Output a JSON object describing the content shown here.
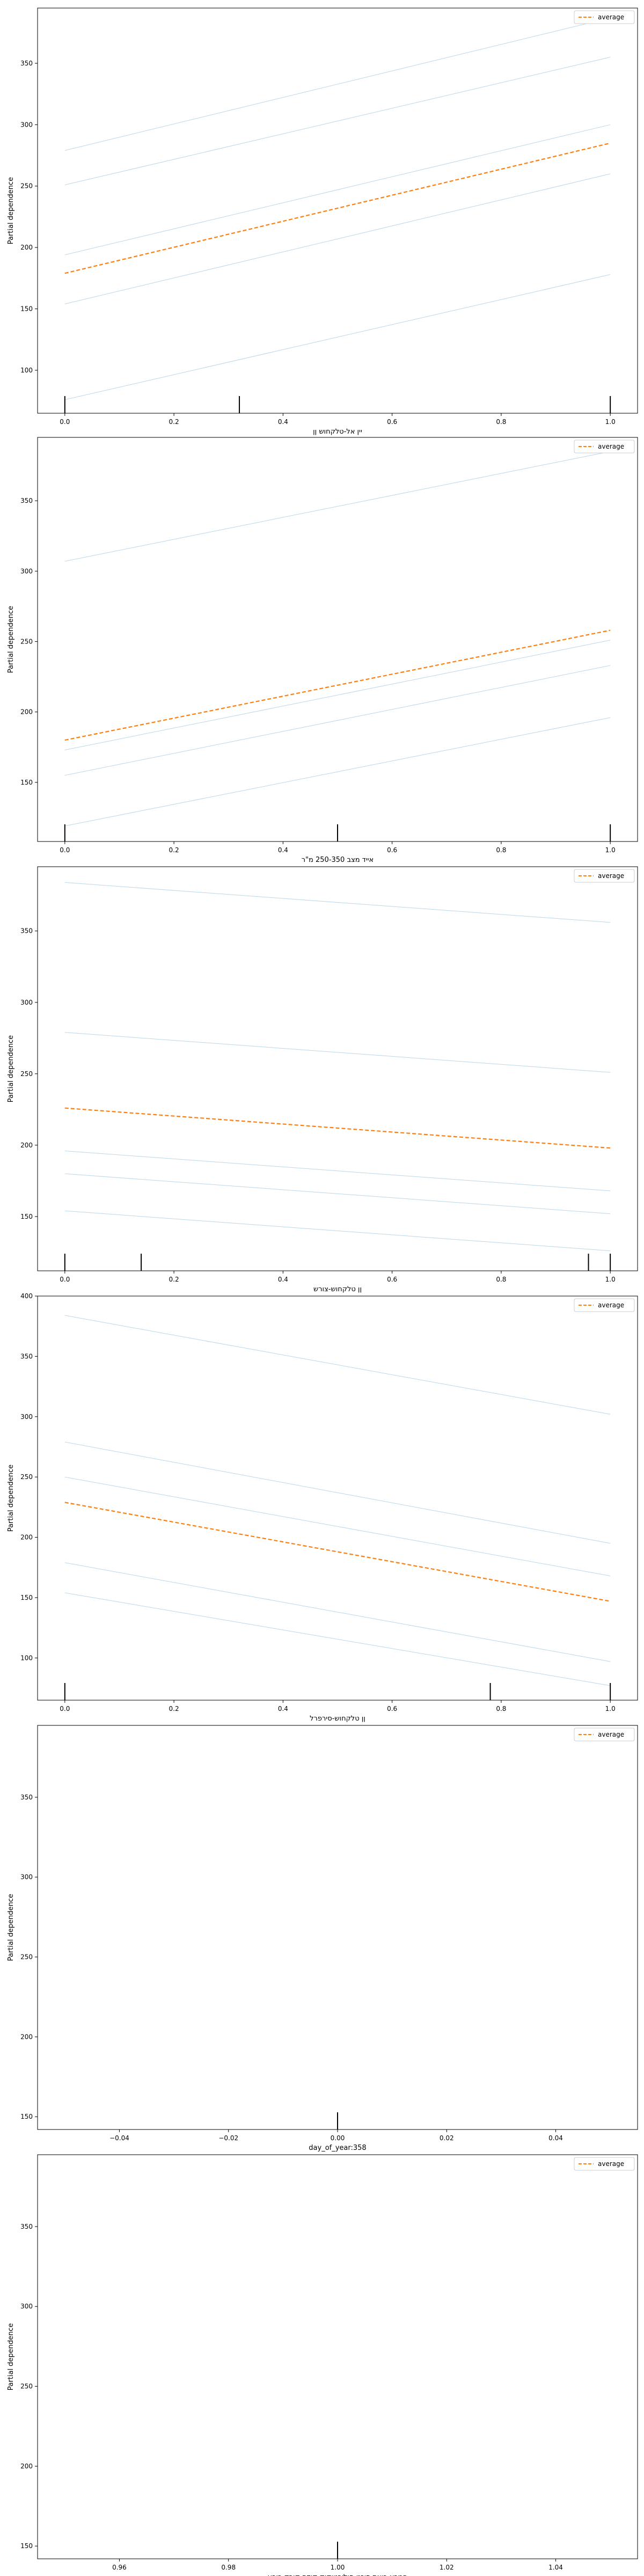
{
  "chart_data": [
    {
      "type": "line",
      "xlabel": "יין אל-טלקחוש ןן",
      "ylabel": "Partial dependence",
      "xlim": [
        -0.05,
        1.05
      ],
      "ylim": [
        65,
        395
      ],
      "xticks": [
        0.0,
        0.2,
        0.4,
        0.6,
        0.8,
        1.0
      ],
      "xtick_labels": [
        "0.0",
        "0.2",
        "0.4",
        "0.6",
        "0.8",
        "1.0"
      ],
      "yticks": [
        100,
        150,
        200,
        250,
        300,
        350
      ],
      "ytick_labels": [
        "100",
        "150",
        "200",
        "250",
        "300",
        "350"
      ],
      "legend": {
        "label": "average",
        "loc": "upper right"
      },
      "average": {
        "x": [
          0,
          1
        ],
        "y": [
          179,
          285
        ],
        "color": "#ff7f0e"
      },
      "ice_lines": [
        {
          "x": [
            0,
            1
          ],
          "y": [
            76,
            178
          ]
        },
        {
          "x": [
            0,
            1
          ],
          "y": [
            154,
            260
          ]
        },
        {
          "x": [
            0,
            1
          ],
          "y": [
            194,
            300
          ]
        },
        {
          "x": [
            0,
            1
          ],
          "y": [
            251,
            355
          ]
        },
        {
          "x": [
            0,
            1
          ],
          "y": [
            279,
            387
          ]
        }
      ],
      "rug": [
        0.0,
        0.32,
        1.0
      ]
    },
    {
      "type": "line",
      "xlabel": "אייד מצב 250-350 מ\"ר",
      "ylabel": "Partial dependence",
      "xlim": [
        -0.05,
        1.05
      ],
      "ylim": [
        108,
        395
      ],
      "xticks": [
        0.0,
        0.2,
        0.4,
        0.6,
        0.8,
        1.0
      ],
      "xtick_labels": [
        "0.0",
        "0.2",
        "0.4",
        "0.6",
        "0.8",
        "1.0"
      ],
      "yticks": [
        150,
        200,
        250,
        300,
        350
      ],
      "ytick_labels": [
        "150",
        "200",
        "250",
        "300",
        "350"
      ],
      "legend": {
        "label": "average",
        "loc": "upper right"
      },
      "average": {
        "x": [
          0,
          1
        ],
        "y": [
          180,
          258
        ],
        "color": "#ff7f0e"
      },
      "ice_lines": [
        {
          "x": [
            0,
            1
          ],
          "y": [
            119,
            196
          ]
        },
        {
          "x": [
            0,
            1
          ],
          "y": [
            155,
            233
          ]
        },
        {
          "x": [
            0,
            1
          ],
          "y": [
            173,
            251
          ]
        },
        {
          "x": [
            0,
            1
          ],
          "y": [
            307,
            385
          ]
        }
      ],
      "rug": [
        0.0,
        0.5,
        1.0
      ]
    },
    {
      "type": "line",
      "xlabel": "ןן טלקחוש-צורש",
      "ylabel": "Partial dependence",
      "xlim": [
        -0.05,
        1.05
      ],
      "ylim": [
        112,
        395
      ],
      "xticks": [
        0.0,
        0.2,
        0.4,
        0.6,
        0.8,
        1.0
      ],
      "xtick_labels": [
        "0.0",
        "0.2",
        "0.4",
        "0.6",
        "0.8",
        "1.0"
      ],
      "yticks": [
        150,
        200,
        250,
        300,
        350
      ],
      "ytick_labels": [
        "150",
        "200",
        "250",
        "300",
        "350"
      ],
      "legend": {
        "label": "average",
        "loc": "upper right"
      },
      "average": {
        "x": [
          0,
          1
        ],
        "y": [
          226,
          198
        ],
        "color": "#ff7f0e"
      },
      "ice_lines": [
        {
          "x": [
            0,
            1
          ],
          "y": [
            154,
            126
          ]
        },
        {
          "x": [
            0,
            1
          ],
          "y": [
            180,
            152
          ]
        },
        {
          "x": [
            0,
            1
          ],
          "y": [
            196,
            168
          ]
        },
        {
          "x": [
            0,
            1
          ],
          "y": [
            279,
            251
          ]
        },
        {
          "x": [
            0,
            1
          ],
          "y": [
            384,
            356
          ]
        }
      ],
      "rug": [
        0.0,
        0.14,
        0.96,
        1.0
      ]
    },
    {
      "type": "line",
      "xlabel": "ןן טלקחוש-סירפרל",
      "ylabel": "Partial dependence",
      "xlim": [
        -0.05,
        1.05
      ],
      "ylim": [
        65,
        400
      ],
      "xticks": [
        0.0,
        0.2,
        0.4,
        0.6,
        0.8,
        1.0
      ],
      "xtick_labels": [
        "0.0",
        "0.2",
        "0.4",
        "0.6",
        "0.8",
        "1.0"
      ],
      "yticks": [
        100,
        150,
        200,
        250,
        300,
        350,
        400
      ],
      "ytick_labels": [
        "100",
        "150",
        "200",
        "250",
        "300",
        "350",
        "400"
      ],
      "legend": {
        "label": "average",
        "loc": "upper right"
      },
      "average": {
        "x": [
          0,
          1
        ],
        "y": [
          229,
          147
        ],
        "color": "#ff7f0e"
      },
      "ice_lines": [
        {
          "x": [
            0,
            1
          ],
          "y": [
            154,
            77
          ]
        },
        {
          "x": [
            0,
            1
          ],
          "y": [
            179,
            97
          ]
        },
        {
          "x": [
            0,
            1
          ],
          "y": [
            250,
            168
          ]
        },
        {
          "x": [
            0,
            1
          ],
          "y": [
            279,
            195
          ]
        },
        {
          "x": [
            0,
            1
          ],
          "y": [
            384,
            302
          ]
        }
      ],
      "rug": [
        0.0,
        0.78,
        1.0
      ]
    },
    {
      "type": "line",
      "xlabel": "day_of_year:358",
      "ylabel": "Partial dependence",
      "xlim": [
        -0.055,
        0.055
      ],
      "ylim": [
        142,
        395
      ],
      "xticks": [
        -0.04,
        -0.02,
        0.0,
        0.02,
        0.04
      ],
      "xtick_labels": [
        "−0.04",
        "−0.02",
        "0.00",
        "0.02",
        "0.04"
      ],
      "yticks": [
        150,
        200,
        250,
        300,
        350
      ],
      "ytick_labels": [
        "150",
        "200",
        "250",
        "300",
        "350"
      ],
      "legend": {
        "label": "average",
        "loc": "upper right"
      },
      "average": {
        "x": [],
        "y": [],
        "color": "#ff7f0e"
      },
      "ice_lines": [],
      "rug": [
        0.0
      ]
    },
    {
      "type": "line",
      "xlabel": "המרא רוצת סיכני-סוליבטוקוק קודם קורק רורע",
      "ylabel": "Partial dependence",
      "xlim": [
        0.945,
        1.055
      ],
      "ylim": [
        142,
        395
      ],
      "xticks": [
        0.96,
        0.98,
        1.0,
        1.02,
        1.04
      ],
      "xtick_labels": [
        "0.96",
        "0.98",
        "1.00",
        "1.02",
        "1.04"
      ],
      "yticks": [
        150,
        200,
        250,
        300,
        350
      ],
      "ytick_labels": [
        "150",
        "200",
        "250",
        "300",
        "350"
      ],
      "legend": {
        "label": "average",
        "loc": "upper right"
      },
      "average": {
        "x": [],
        "y": [],
        "color": "#ff7f0e"
      },
      "ice_lines": [],
      "rug": [
        1.0
      ]
    }
  ],
  "colors": {
    "ice": "#1f77b4",
    "average": "#ff7f0e",
    "axis": "#000000"
  }
}
